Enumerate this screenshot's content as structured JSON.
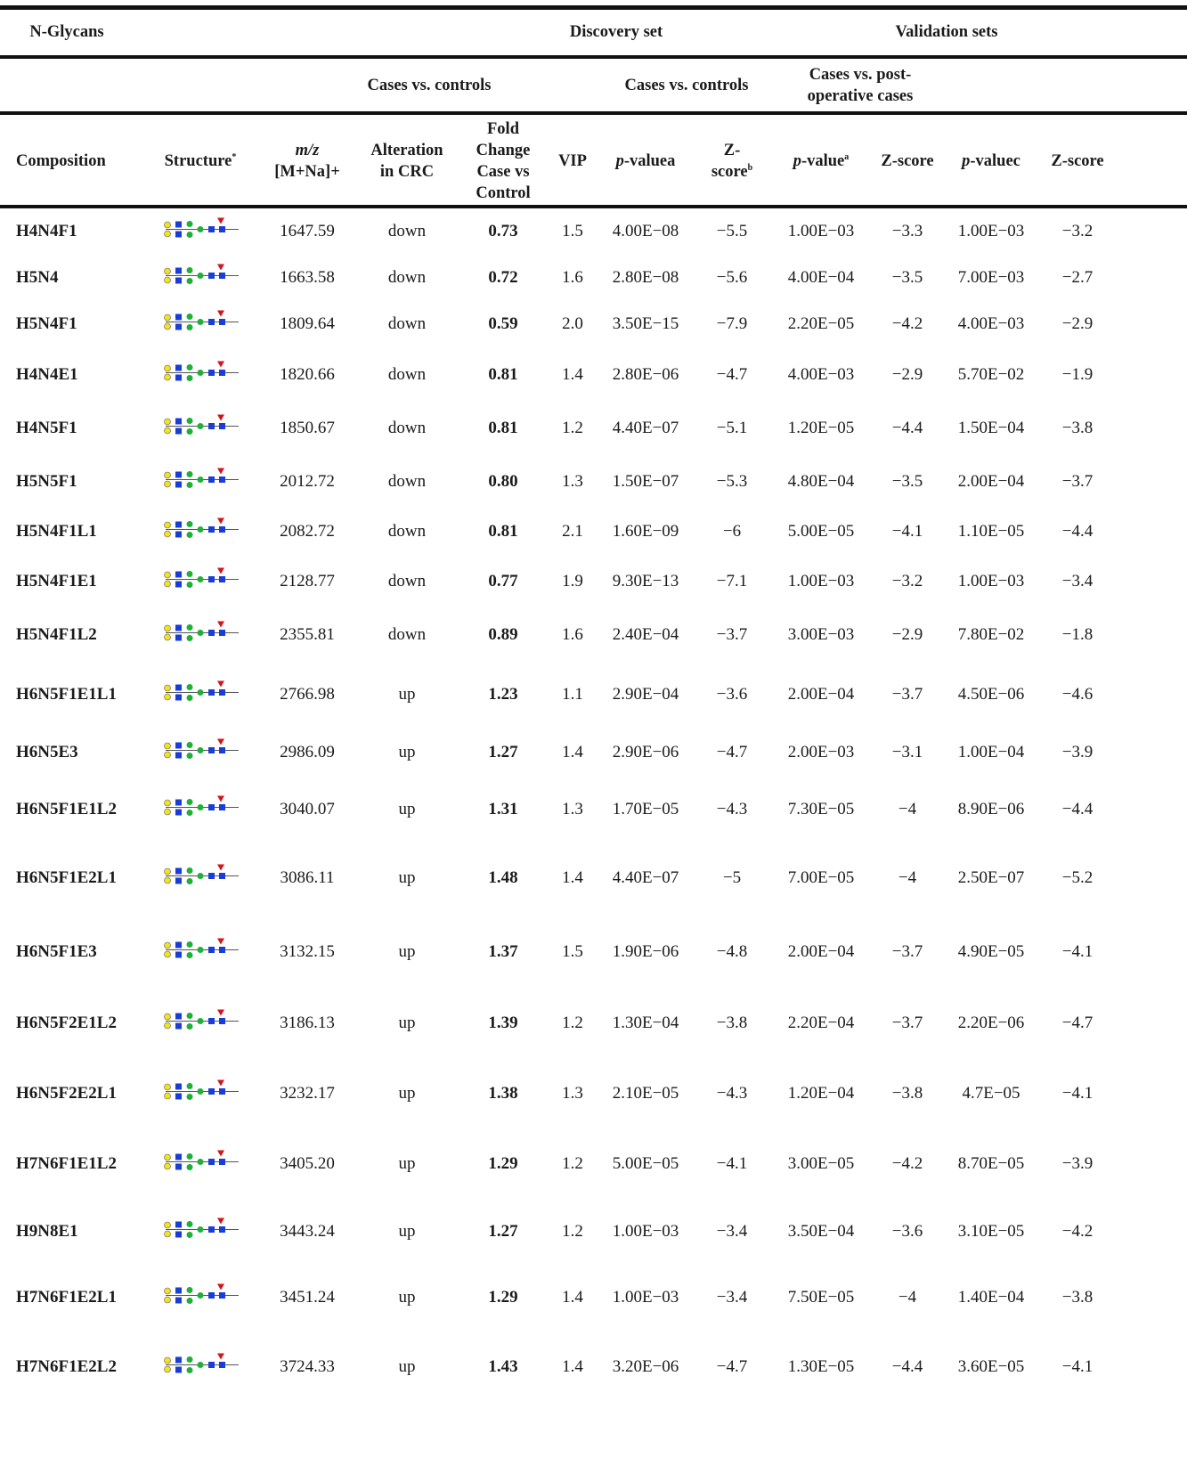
{
  "table": {
    "group_headers": [
      "N-Glycans",
      "Discovery set",
      "Validation sets"
    ],
    "sub_headers": [
      "Cases vs. controls",
      "Cases vs. controls",
      "Cases vs. post-",
      "operative cases"
    ],
    "columns": [
      {
        "text": "Composition"
      },
      {
        "text": "Structure",
        "sup": "*"
      },
      {
        "italic": "m/z",
        "text": "[M+Na]+"
      },
      {
        "text": "Alteration in CRC"
      },
      {
        "text": "Fold Change Case vs Control"
      },
      {
        "text": "VIP"
      },
      {
        "italic": "p",
        "text": "-valuea"
      },
      {
        "text": "Z-score",
        "sup": "b"
      },
      {
        "italic": "p",
        "text": "-value",
        "sup": "a"
      },
      {
        "text": "Z-score"
      },
      {
        "italic": "p",
        "text": "-valuec"
      },
      {
        "text": "Z-score"
      }
    ],
    "rows": [
      [
        "H4N4F1",
        "1647.59",
        "down",
        "0.73",
        "1.5",
        "4.00E−08",
        "−5.5",
        "1.00E−03",
        "−3.3",
        "1.00E−03",
        "−3.2"
      ],
      [
        "H5N4",
        "1663.58",
        "down",
        "0.72",
        "1.6",
        "2.80E−08",
        "−5.6",
        "4.00E−04",
        "−3.5",
        "7.00E−03",
        "−2.7"
      ],
      [
        "H5N4F1",
        "1809.64",
        "down",
        "0.59",
        "2.0",
        "3.50E−15",
        "−7.9",
        "2.20E−05",
        "−4.2",
        "4.00E−03",
        "−2.9"
      ],
      [
        "H4N4E1",
        "1820.66",
        "down",
        "0.81",
        "1.4",
        "2.80E−06",
        "−4.7",
        "4.00E−03",
        "−2.9",
        "5.70E−02",
        "−1.9"
      ],
      [
        "H4N5F1",
        "1850.67",
        "down",
        "0.81",
        "1.2",
        "4.40E−07",
        "−5.1",
        "1.20E−05",
        "−4.4",
        "1.50E−04",
        "−3.8"
      ],
      [
        "H5N5F1",
        "2012.72",
        "down",
        "0.80",
        "1.3",
        "1.50E−07",
        "−5.3",
        "4.80E−04",
        "−3.5",
        "2.00E−04",
        "−3.7"
      ],
      [
        "H5N4F1L1",
        "2082.72",
        "down",
        "0.81",
        "2.1",
        "1.60E−09",
        "−6",
        "5.00E−05",
        "−4.1",
        "1.10E−05",
        "−4.4"
      ],
      [
        "H5N4F1E1",
        "2128.77",
        "down",
        "0.77",
        "1.9",
        "9.30E−13",
        "−7.1",
        "1.00E−03",
        "−3.2",
        "1.00E−03",
        "−3.4"
      ],
      [
        "H5N4F1L2",
        "2355.81",
        "down",
        "0.89",
        "1.6",
        "2.40E−04",
        "−3.7",
        "3.00E−03",
        "−2.9",
        "7.80E−02",
        "−1.8"
      ],
      [
        "H6N5F1E1L1",
        "2766.98",
        "up",
        "1.23",
        "1.1",
        "2.90E−04",
        "−3.6",
        "2.00E−04",
        "−3.7",
        "4.50E−06",
        "−4.6"
      ],
      [
        "H6N5E3",
        "2986.09",
        "up",
        "1.27",
        "1.4",
        "2.90E−06",
        "−4.7",
        "2.00E−03",
        "−3.1",
        "1.00E−04",
        "−3.9"
      ],
      [
        "H6N5F1E1L2",
        "3040.07",
        "up",
        "1.31",
        "1.3",
        "1.70E−05",
        "−4.3",
        "7.30E−05",
        "−4",
        "8.90E−06",
        "−4.4"
      ],
      [
        "H6N5F1E2L1",
        "3086.11",
        "up",
        "1.48",
        "1.4",
        "4.40E−07",
        "−5",
        "7.00E−05",
        "−4",
        "2.50E−07",
        "−5.2"
      ],
      [
        "H6N5F1E3",
        "3132.15",
        "up",
        "1.37",
        "1.5",
        "1.90E−06",
        "−4.8",
        "2.00E−04",
        "−3.7",
        "4.90E−05",
        "−4.1"
      ],
      [
        "H6N5F2E1L2",
        "3186.13",
        "up",
        "1.39",
        "1.2",
        "1.30E−04",
        "−3.8",
        "2.20E−04",
        "−3.7",
        "2.20E−06",
        "−4.7"
      ],
      [
        "H6N5F2E2L1",
        "3232.17",
        "up",
        "1.38",
        "1.3",
        "2.10E−05",
        "−4.3",
        "1.20E−04",
        "−3.8",
        "4.7E−05",
        "−4.1"
      ],
      [
        "H7N6F1E1L2",
        "3405.20",
        "up",
        "1.29",
        "1.2",
        "5.00E−05",
        "−4.1",
        "3.00E−05",
        "−4.2",
        "8.70E−05",
        "−3.9"
      ],
      [
        "H9N8E1",
        "3443.24",
        "up",
        "1.27",
        "1.2",
        "1.00E−03",
        "−3.4",
        "3.50E−04",
        "−3.6",
        "3.10E−05",
        "−4.2"
      ],
      [
        "H7N6F1E2L1",
        "3451.24",
        "up",
        "1.29",
        "1.4",
        "1.00E−03",
        "−3.4",
        "7.50E−05",
        "−4",
        "1.40E−04",
        "−3.8"
      ],
      [
        "H7N6F1E2L2",
        "3724.33",
        "up",
        "1.43",
        "1.4",
        "3.20E−06",
        "−4.7",
        "1.30E−05",
        "−4.4",
        "3.60E−05",
        "−4.1"
      ]
    ]
  }
}
